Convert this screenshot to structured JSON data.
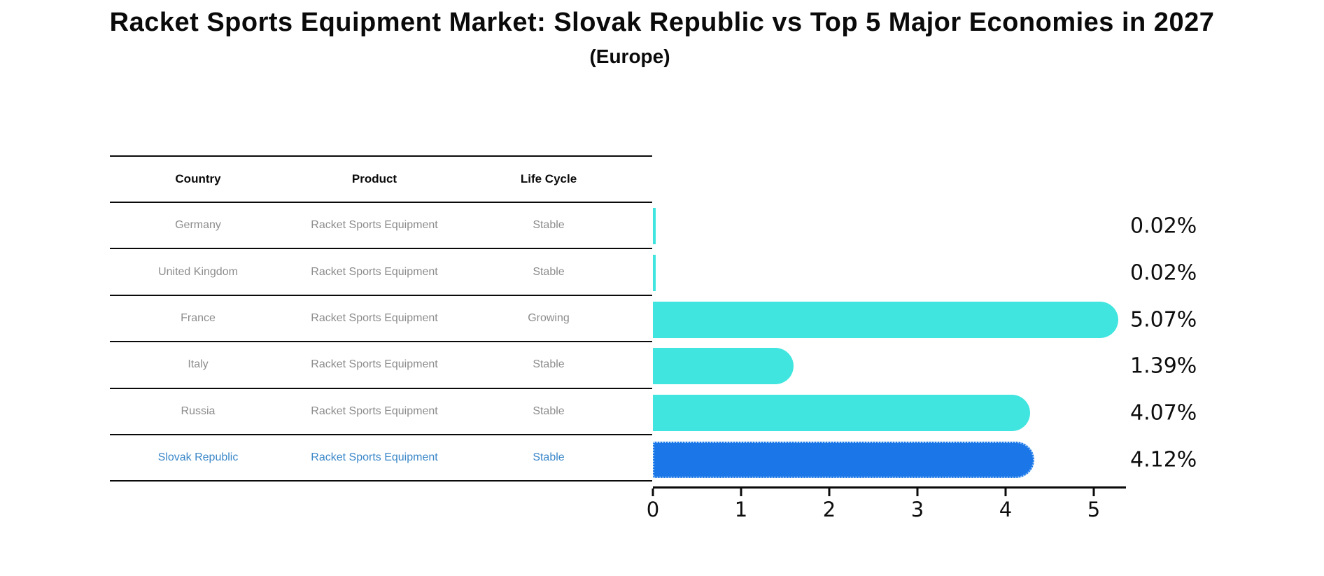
{
  "title": "Racket Sports Equipment Market: Slovak Republic vs Top 5 Major Economies in 2027",
  "subtitle": "(Europe)",
  "table": {
    "headers": {
      "country": "Country",
      "product": "Product",
      "life_cycle": "Life Cycle"
    },
    "rows": [
      {
        "country": "Germany",
        "product": "Racket Sports Equipment",
        "life_cycle": "Stable",
        "highlight": false
      },
      {
        "country": "United Kingdom",
        "product": "Racket Sports Equipment",
        "life_cycle": "Stable",
        "highlight": false
      },
      {
        "country": "France",
        "product": "Racket Sports Equipment",
        "life_cycle": "Growing",
        "highlight": false
      },
      {
        "country": "Italy",
        "product": "Racket Sports Equipment",
        "life_cycle": "Stable",
        "highlight": false
      },
      {
        "country": "Russia",
        "product": "Racket Sports Equipment",
        "life_cycle": "Stable",
        "highlight": false
      },
      {
        "country": "Slovak Republic",
        "product": "Racket Sports Equipment",
        "life_cycle": "Stable",
        "highlight": true
      }
    ]
  },
  "chart_data": {
    "type": "bar",
    "orientation": "horizontal",
    "title": "Racket Sports Equipment Market: Slovak Republic vs Top 5 Major Economies in 2027",
    "subtitle": "(Europe)",
    "categories": [
      "Germany",
      "United Kingdom",
      "France",
      "Italy",
      "Russia",
      "Slovak Republic"
    ],
    "values": [
      0.02,
      0.02,
      5.07,
      1.39,
      4.07,
      4.12
    ],
    "value_labels": [
      "0.02%",
      "0.02%",
      "5.07%",
      "1.39%",
      "4.07%",
      "4.12%"
    ],
    "xticks": [
      "0",
      "1",
      "2",
      "3",
      "4",
      "5"
    ],
    "xlim": [
      0,
      5.35
    ],
    "grid": false,
    "legend": false,
    "highlight_index": 5,
    "colors": {
      "bar": "#40e5df",
      "highlight_bar": "#1b76e8",
      "highlight_border": "#9cc9f8",
      "highlight_text": "#3a87c8",
      "table_text": "#8c8c8c",
      "axis": "#0a0a0a"
    }
  }
}
